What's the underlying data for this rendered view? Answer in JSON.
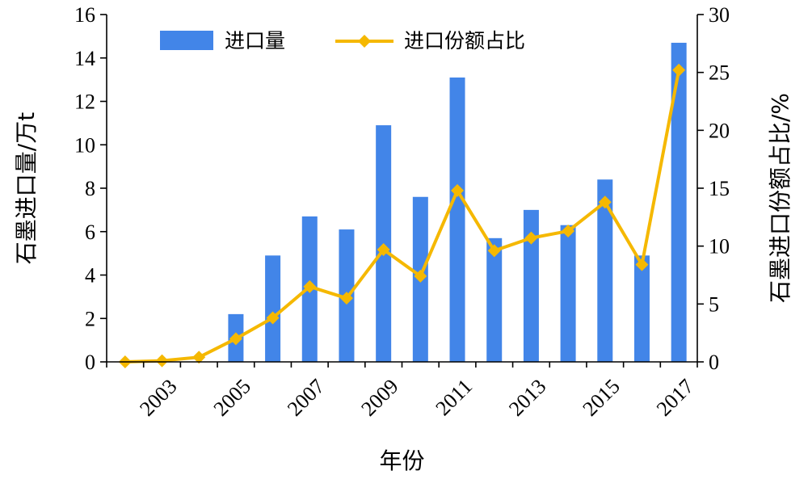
{
  "chart_data": {
    "type": "bar+line",
    "categories": [
      "2002",
      "2003",
      "2004",
      "2005",
      "2006",
      "2007",
      "2008",
      "2009",
      "2010",
      "2011",
      "2012",
      "2013",
      "2014",
      "2015",
      "2016",
      "2017"
    ],
    "x_tick_labels": [
      "2003",
      "2005",
      "2007",
      "2009",
      "2011",
      "2013",
      "2015",
      "2017"
    ],
    "series": [
      {
        "name": "进口量",
        "type": "bar",
        "axis": "left",
        "color": "#4285e8",
        "values": [
          0,
          0,
          0,
          2.2,
          4.9,
          6.7,
          6.1,
          10.9,
          7.6,
          13.1,
          5.7,
          7.0,
          6.3,
          8.4,
          4.9,
          14.7
        ]
      },
      {
        "name": "进口份额占比",
        "type": "line",
        "axis": "right",
        "color": "#f5b800",
        "marker": "diamond",
        "values": [
          0.0,
          0.1,
          0.4,
          2.0,
          3.8,
          6.5,
          5.5,
          9.7,
          7.4,
          14.8,
          9.6,
          10.7,
          11.3,
          13.8,
          8.4,
          25.2
        ]
      }
    ],
    "ylabel": "石墨进口量/万t",
    "y2label": "石墨进口份额占比/%",
    "xlabel": "年份",
    "ylim": [
      0,
      16
    ],
    "yticks": [
      0,
      2,
      4,
      6,
      8,
      10,
      12,
      14,
      16
    ],
    "y2lim": [
      0,
      30
    ],
    "y2ticks": [
      0,
      5,
      10,
      15,
      20,
      25,
      30
    ],
    "grid": false,
    "legend_position": "top-left"
  }
}
